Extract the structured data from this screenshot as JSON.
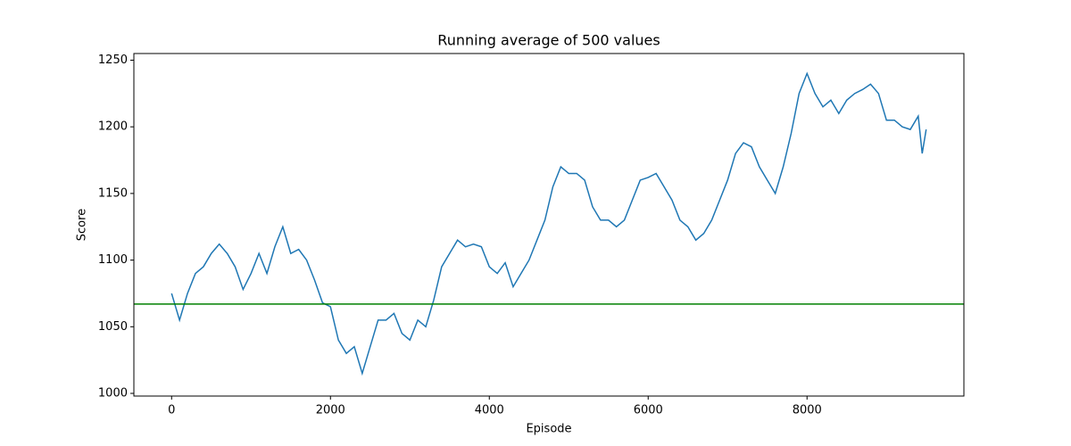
{
  "chart_data": {
    "type": "line",
    "title": "Running average of 500 values",
    "xlabel": "Episode",
    "ylabel": "Score",
    "x": [
      0,
      100,
      200,
      300,
      400,
      500,
      600,
      700,
      800,
      900,
      1000,
      1100,
      1200,
      1300,
      1400,
      1500,
      1600,
      1700,
      1800,
      1900,
      2000,
      2100,
      2200,
      2300,
      2400,
      2500,
      2600,
      2700,
      2800,
      2900,
      3000,
      3100,
      3200,
      3300,
      3400,
      3500,
      3600,
      3700,
      3800,
      3900,
      4000,
      4100,
      4200,
      4300,
      4400,
      4500,
      4600,
      4700,
      4800,
      4900,
      5000,
      5100,
      5200,
      5300,
      5400,
      5500,
      5600,
      5700,
      5800,
      5900,
      6000,
      6100,
      6200,
      6300,
      6400,
      6500,
      6600,
      6700,
      6800,
      6900,
      7000,
      7100,
      7200,
      7300,
      7400,
      7500,
      7600,
      7700,
      7800,
      7900,
      8000,
      8100,
      8200,
      8300,
      8400,
      8500,
      8600,
      8700,
      8800,
      8900,
      9000,
      9100,
      9200,
      9300,
      9400,
      9450,
      9500
    ],
    "series": [
      {
        "name": "Score",
        "color": "#1f77b4",
        "values": [
          1075,
          1055,
          1075,
          1090,
          1095,
          1105,
          1112,
          1105,
          1095,
          1078,
          1090,
          1105,
          1090,
          1110,
          1125,
          1105,
          1108,
          1100,
          1085,
          1068,
          1065,
          1040,
          1030,
          1035,
          1015,
          1035,
          1055,
          1055,
          1060,
          1045,
          1040,
          1055,
          1050,
          1070,
          1095,
          1105,
          1115,
          1110,
          1112,
          1110,
          1095,
          1090,
          1098,
          1080,
          1090,
          1100,
          1115,
          1130,
          1155,
          1170,
          1165,
          1165,
          1160,
          1140,
          1130,
          1130,
          1125,
          1130,
          1145,
          1160,
          1162,
          1165,
          1155,
          1145,
          1130,
          1125,
          1115,
          1120,
          1130,
          1145,
          1160,
          1180,
          1188,
          1185,
          1170,
          1160,
          1150,
          1170,
          1195,
          1225,
          1240,
          1225,
          1215,
          1220,
          1210,
          1220,
          1225,
          1228,
          1232,
          1225,
          1205,
          1205,
          1200,
          1198,
          1208,
          1180,
          1198
        ]
      }
    ],
    "hline": {
      "value": 1067,
      "color": "#008000"
    },
    "xlim": [
      -475,
      9975
    ],
    "xticks": [
      0,
      2000,
      4000,
      6000,
      8000
    ],
    "ylim": [
      998,
      1255
    ],
    "yticks": [
      1000,
      1050,
      1100,
      1150,
      1200,
      1250
    ],
    "grid": false
  }
}
